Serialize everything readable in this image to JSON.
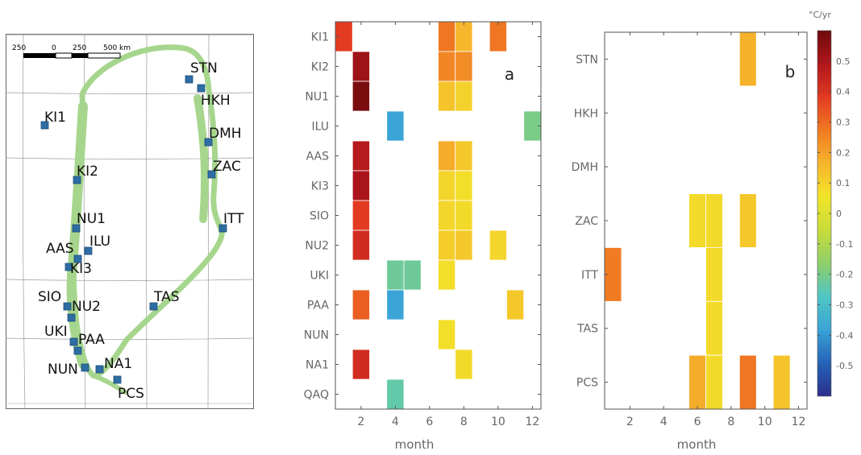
{
  "map": {
    "scale_labels": [
      "250",
      "0",
      "250",
      "500 km"
    ],
    "stations": [
      {
        "code": "STN"
      },
      {
        "code": "HKH"
      },
      {
        "code": "KI1"
      },
      {
        "code": "DMH"
      },
      {
        "code": "ZAC"
      },
      {
        "code": "KI2"
      },
      {
        "code": "ITT"
      },
      {
        "code": "NU1"
      },
      {
        "code": "ILU"
      },
      {
        "code": "AAS"
      },
      {
        "code": "KI3"
      },
      {
        "code": "TAS"
      },
      {
        "code": "SIO"
      },
      {
        "code": "NU2"
      },
      {
        "code": "UKI"
      },
      {
        "code": "PAA"
      },
      {
        "code": "NUN"
      },
      {
        "code": "NA1"
      },
      {
        "code": "PCS"
      }
    ]
  },
  "chart_data": [
    {
      "type": "heatmap",
      "panel_label": "a",
      "xlabel": "month",
      "ylabel": "",
      "x_ticks": [
        2,
        4,
        6,
        8,
        10,
        12
      ],
      "xlim": [
        0.5,
        12.5
      ],
      "rows": [
        "KI1",
        "KI2",
        "NU1",
        "ILU",
        "AAS",
        "KI3",
        "SIO",
        "NU2",
        "UKI",
        "PAA",
        "NUN",
        "NA1",
        "QAQ"
      ],
      "cells": [
        {
          "row": "KI1",
          "month": 1,
          "value": 0.38
        },
        {
          "row": "KI1",
          "month": 7,
          "value": 0.28
        },
        {
          "row": "KI1",
          "month": 8,
          "value": 0.16
        },
        {
          "row": "KI1",
          "month": 10,
          "value": 0.28
        },
        {
          "row": "KI2",
          "month": 2,
          "value": 0.52
        },
        {
          "row": "KI2",
          "month": 7,
          "value": 0.25
        },
        {
          "row": "KI2",
          "month": 8,
          "value": 0.24
        },
        {
          "row": "NU1",
          "month": 2,
          "value": 0.58
        },
        {
          "row": "NU1",
          "month": 7,
          "value": 0.13
        },
        {
          "row": "NU1",
          "month": 8,
          "value": 0.1
        },
        {
          "row": "ILU",
          "month": 4,
          "value": -0.38
        },
        {
          "row": "ILU",
          "month": 12,
          "value": -0.2
        },
        {
          "row": "AAS",
          "month": 2,
          "value": 0.48
        },
        {
          "row": "AAS",
          "month": 7,
          "value": 0.18
        },
        {
          "row": "AAS",
          "month": 8,
          "value": 0.12
        },
        {
          "row": "KI3",
          "month": 2,
          "value": 0.5
        },
        {
          "row": "KI3",
          "month": 7,
          "value": 0.09
        },
        {
          "row": "KI3",
          "month": 8,
          "value": 0.07
        },
        {
          "row": "SIO",
          "month": 2,
          "value": 0.38
        },
        {
          "row": "SIO",
          "month": 7,
          "value": 0.09
        },
        {
          "row": "SIO",
          "month": 8,
          "value": 0.08
        },
        {
          "row": "NU2",
          "month": 2,
          "value": 0.42
        },
        {
          "row": "NU2",
          "month": 7,
          "value": 0.11
        },
        {
          "row": "NU2",
          "month": 8,
          "value": 0.12
        },
        {
          "row": "NU2",
          "month": 10,
          "value": 0.09
        },
        {
          "row": "UKI",
          "month": 4,
          "value": -0.22
        },
        {
          "row": "UKI",
          "month": 5,
          "value": -0.22
        },
        {
          "row": "UKI",
          "month": 7,
          "value": 0.07
        },
        {
          "row": "PAA",
          "month": 2,
          "value": 0.32
        },
        {
          "row": "PAA",
          "month": 4,
          "value": -0.38
        },
        {
          "row": "PAA",
          "month": 11,
          "value": 0.12
        },
        {
          "row": "NUN",
          "month": 7,
          "value": 0.07
        },
        {
          "row": "NA1",
          "month": 2,
          "value": 0.42
        },
        {
          "row": "NA1",
          "month": 8,
          "value": 0.08
        },
        {
          "row": "QAQ",
          "month": 4,
          "value": -0.24
        }
      ]
    },
    {
      "type": "heatmap",
      "panel_label": "b",
      "xlabel": "month",
      "ylabel": "",
      "x_ticks": [
        2,
        4,
        6,
        8,
        10,
        12
      ],
      "xlim": [
        0.5,
        12.5
      ],
      "rows": [
        "STN",
        "HKH",
        "DMH",
        "ZAC",
        "ITT",
        "TAS",
        "PCS"
      ],
      "cells": [
        {
          "row": "STN",
          "month": 9,
          "value": 0.17
        },
        {
          "row": "ZAC",
          "month": 6,
          "value": 0.08
        },
        {
          "row": "ZAC",
          "month": 7,
          "value": 0.08
        },
        {
          "row": "ZAC",
          "month": 9,
          "value": 0.12
        },
        {
          "row": "ITT",
          "month": 1,
          "value": 0.27
        },
        {
          "row": "ITT",
          "month": 7,
          "value": 0.08
        },
        {
          "row": "TAS",
          "month": 7,
          "value": 0.08
        },
        {
          "row": "PCS",
          "month": 6,
          "value": 0.18
        },
        {
          "row": "PCS",
          "month": 7,
          "value": 0.08
        },
        {
          "row": "PCS",
          "month": 9,
          "value": 0.28
        },
        {
          "row": "PCS",
          "month": 11,
          "value": 0.13
        }
      ],
      "colorbar": {
        "unit": "°C/yr",
        "range": [
          -0.6,
          0.6
        ],
        "tick_labels": [
          "0.5",
          "0.4",
          "0.3",
          "0.2",
          "0.1",
          "0",
          "-0.1",
          "-0.2",
          "-0.3",
          "-0.4",
          "-0.5"
        ],
        "tick_values": [
          0.5,
          0.4,
          0.3,
          0.2,
          0.1,
          0,
          -0.1,
          -0.2,
          -0.3,
          -0.4,
          -0.5
        ],
        "colormap": [
          "#2b2f8c",
          "#2563b8",
          "#3aa3d6",
          "#4fc6c4",
          "#8fcf6a",
          "#c8dc3a",
          "#f2e52a",
          "#f6b52c",
          "#f07a22",
          "#e23a22",
          "#b0161c",
          "#6e0b0b"
        ]
      }
    }
  ]
}
